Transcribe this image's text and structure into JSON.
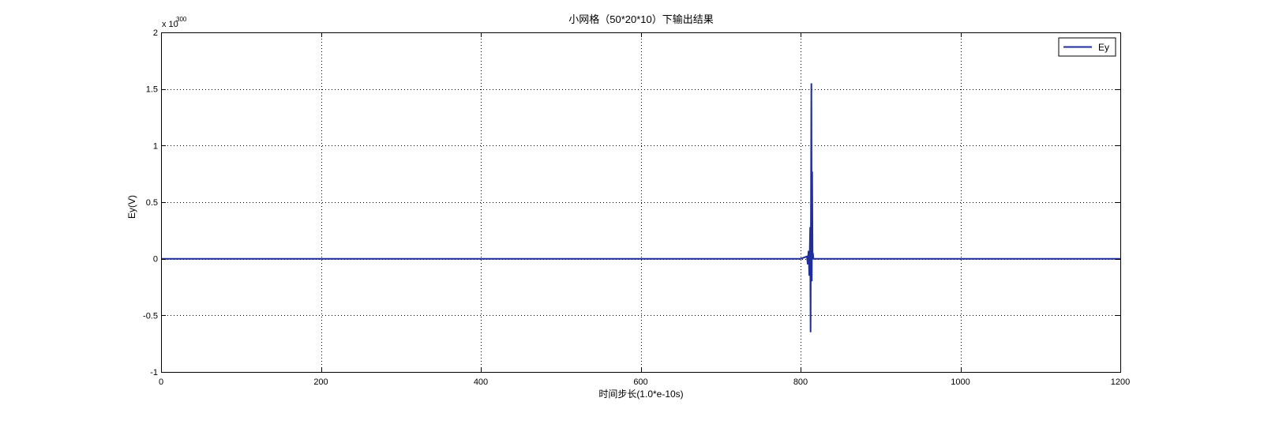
{
  "chart_data": {
    "type": "line",
    "title": "小网格（50*20*10）下输出结果",
    "xlabel": "时间步长(1.0*e-10s)",
    "ylabel": "Ey(V)",
    "y_exponent_prefix": "x 10",
    "y_exponent_power": "300",
    "xlim": [
      0,
      1200
    ],
    "ylim": [
      -1,
      2
    ],
    "x_ticks": [
      0,
      200,
      400,
      600,
      800,
      1000,
      1200
    ],
    "x_tick_labels": [
      "0",
      "200",
      "400",
      "600",
      "800",
      "1000",
      "1200"
    ],
    "y_ticks": [
      -1,
      -0.5,
      0,
      0.5,
      1,
      1.5,
      2
    ],
    "y_tick_labels": [
      "-1",
      "-0.5",
      "0",
      "0.5",
      "1",
      "1.5",
      "2"
    ],
    "grid": true,
    "legend_position": "top-right",
    "series": [
      {
        "name": "Ey",
        "color": "#1f2e9b",
        "x": [
          0,
          770,
          800,
          808,
          809,
          810,
          811,
          812,
          812.5,
          813,
          813.5,
          814,
          814.5,
          815,
          815.5,
          816,
          1200
        ],
        "y": [
          0,
          0,
          0,
          0.02,
          -0.05,
          0.07,
          -0.15,
          0.28,
          -0.65,
          0.45,
          1.55,
          -0.2,
          0.77,
          0.02,
          0.05,
          0,
          0
        ]
      }
    ]
  }
}
